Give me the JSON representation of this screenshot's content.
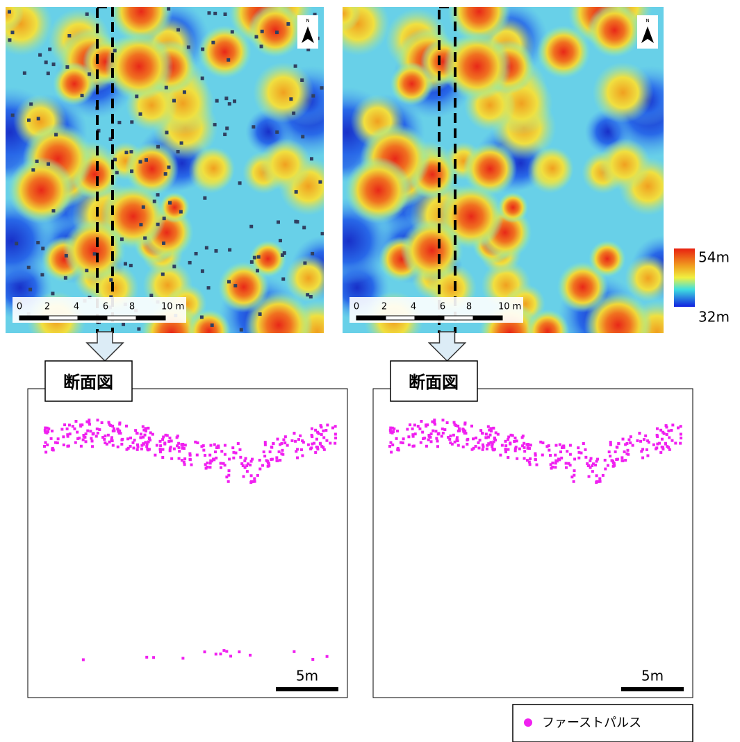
{
  "maps": [
    {
      "north": "N",
      "scale_labels": [
        "0",
        "2",
        "4",
        "6",
        "8",
        "10 m"
      ]
    },
    {
      "north": "N",
      "scale_labels": [
        "0",
        "2",
        "4",
        "6",
        "8",
        "10 m"
      ]
    }
  ],
  "color_legend": {
    "max": "54m",
    "min": "32m"
  },
  "profiles": [
    {
      "title": "断面図",
      "scale": "5m"
    },
    {
      "title": "断面図",
      "scale": "5m"
    }
  ],
  "legend": {
    "label": "ファーストパルス"
  }
}
